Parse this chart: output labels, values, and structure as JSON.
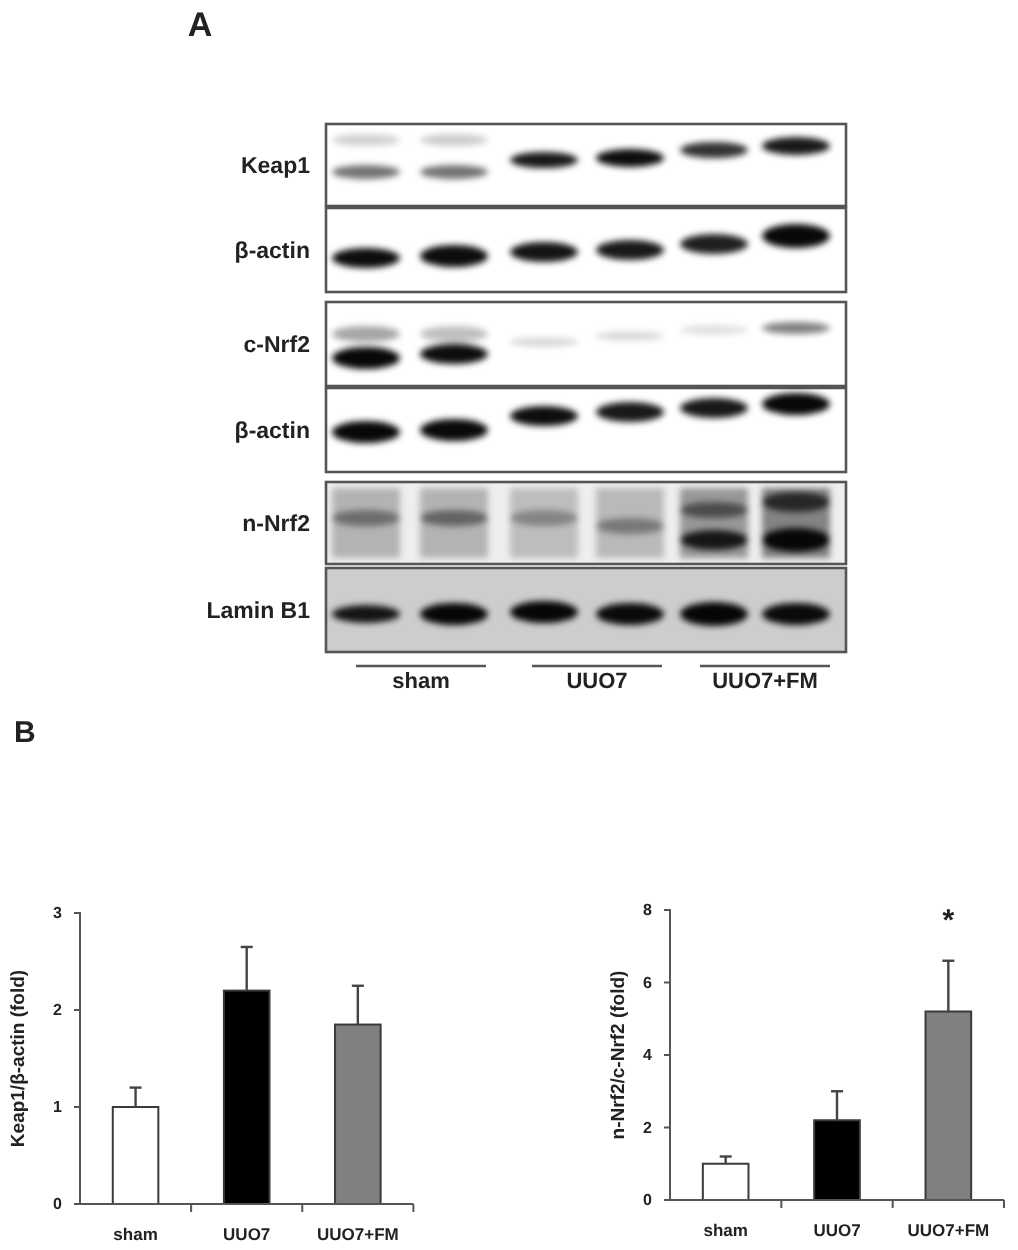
{
  "chart_data": [
    {
      "type": "other",
      "title": "A",
      "annotations": [
        "Keap1",
        "β-actin",
        "c-Nrf2",
        "β-actin",
        "n-Nrf2",
        "Lamin B1",
        "sham",
        "UUO7",
        "UUO7+FM",
        "B"
      ]
    },
    {
      "type": "bar",
      "categories": [
        "sham",
        "UUO7",
        "UUO7+FM"
      ],
      "values": [
        1.0,
        2.2,
        1.85
      ],
      "colors": [
        "#ffffff",
        "#000000",
        "#808080"
      ],
      "errors": [
        [
          1.0,
          1.2
        ],
        [
          2.2,
          2.65
        ],
        [
          1.85,
          2.25
        ]
      ],
      "ylabel": "Keap1/β-actin (fold)",
      "ylim": [
        0,
        3
      ],
      "yticks": [
        0,
        1,
        2,
        3
      ]
    },
    {
      "type": "bar",
      "categories": [
        "sham",
        "UUO7",
        "UUO7+FM"
      ],
      "values": [
        1.0,
        2.2,
        5.2
      ],
      "colors": [
        "#ffffff",
        "#000000",
        "#808080"
      ],
      "errors": [
        [
          1.0,
          1.2
        ],
        [
          2.2,
          3.0
        ],
        [
          5.2,
          6.6
        ]
      ],
      "ylabel": "n-Nrf2/c-Nrf2 (fold)",
      "ylim": [
        0,
        8
      ],
      "yticks": [
        0,
        2,
        4,
        6,
        8
      ],
      "annotations": [
        "*"
      ]
    }
  ]
}
